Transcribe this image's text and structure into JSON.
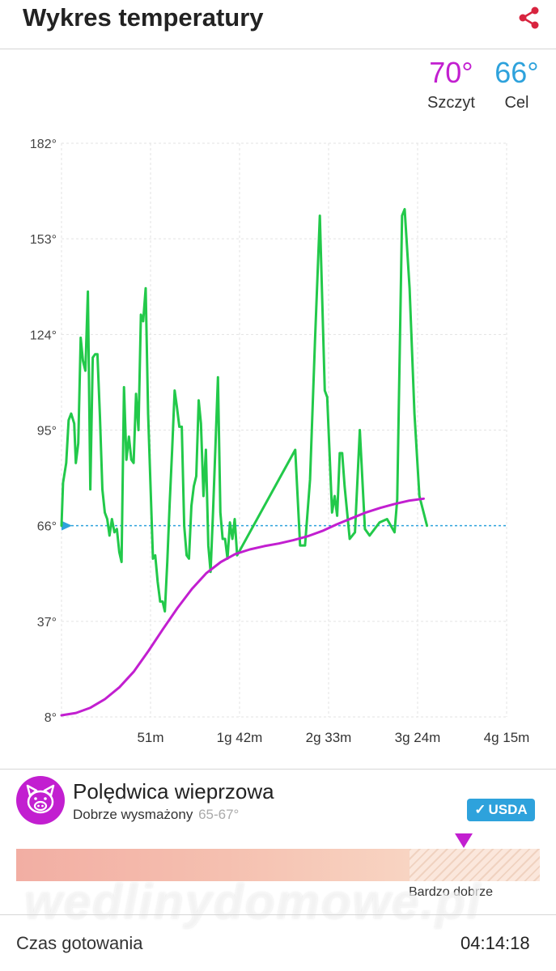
{
  "header": {
    "title": "Wykres temperatury",
    "share_icon": "share-icon"
  },
  "stats": {
    "peak_value": "70°",
    "peak_label": "Szczyt",
    "target_value": "66°",
    "target_label": "Cel"
  },
  "chart_data": {
    "type": "line",
    "title": "",
    "xlabel": "",
    "ylabel": "",
    "y_ticks": [
      "182°",
      "153°",
      "124°",
      "95°",
      "66°",
      "37°",
      "8°"
    ],
    "x_ticks": [
      "51m",
      "1g 42m",
      "2g 33m",
      "3g 24m",
      "4g 15m"
    ],
    "y_tick_values": [
      182,
      153,
      124,
      95,
      66,
      37,
      8
    ],
    "x_tick_values": [
      51,
      102,
      153,
      204,
      255
    ],
    "ylim": [
      8,
      182
    ],
    "xlim": [
      0,
      255
    ],
    "grid": true,
    "target_line": 66,
    "colors": {
      "ambient": "#22c94a",
      "internal": "#c21fd0",
      "target": "#2ea2dc",
      "grid": "#e3e3e3"
    },
    "series": [
      {
        "points": [
          [
            0,
            66
          ],
          [
            0.9,
            79
          ],
          [
            2.7,
            85
          ],
          [
            4.1,
            98
          ],
          [
            5.5,
            100
          ],
          [
            7.3,
            97
          ],
          [
            8.2,
            85
          ],
          [
            9.6,
            91
          ],
          [
            11.0,
            123
          ],
          [
            12.3,
            116
          ],
          [
            13.7,
            113
          ],
          [
            15.1,
            137
          ],
          [
            16.5,
            77
          ],
          [
            17.9,
            117
          ],
          [
            19.3,
            118
          ],
          [
            20.6,
            118
          ],
          [
            22.0,
            99
          ],
          [
            23.4,
            77
          ],
          [
            24.8,
            70
          ],
          [
            26.2,
            68
          ],
          [
            27.5,
            63
          ],
          [
            28.9,
            68
          ],
          [
            30.3,
            64
          ],
          [
            31.7,
            65
          ],
          [
            33.1,
            58
          ],
          [
            34.4,
            55
          ],
          [
            35.8,
            108
          ],
          [
            37.2,
            86
          ],
          [
            38.6,
            93
          ],
          [
            40.0,
            86
          ],
          [
            41.3,
            85
          ],
          [
            42.7,
            106
          ],
          [
            44.1,
            95
          ],
          [
            45.5,
            130
          ],
          [
            46.8,
            128
          ],
          [
            48.2,
            138
          ],
          [
            49.6,
            100
          ],
          [
            51.0,
            78
          ],
          [
            52.4,
            56
          ],
          [
            53.7,
            57
          ],
          [
            55.1,
            49
          ],
          [
            56.5,
            43
          ],
          [
            57.9,
            43
          ],
          [
            59.2,
            40
          ],
          [
            60.6,
            55
          ],
          [
            62.0,
            73
          ],
          [
            63.4,
            89
          ],
          [
            64.8,
            107
          ],
          [
            66.1,
            102
          ],
          [
            67.5,
            96
          ],
          [
            68.9,
            96
          ],
          [
            70.3,
            66
          ],
          [
            71.7,
            57
          ],
          [
            73.0,
            56
          ],
          [
            74.4,
            72
          ],
          [
            75.8,
            78
          ],
          [
            77.2,
            81
          ],
          [
            78.6,
            104
          ],
          [
            79.9,
            97
          ],
          [
            81.3,
            75
          ],
          [
            82.7,
            89
          ],
          [
            84.1,
            60
          ],
          [
            85.4,
            52
          ],
          [
            86.8,
            70
          ],
          [
            88.2,
            90
          ],
          [
            89.6,
            111
          ],
          [
            91.0,
            70
          ],
          [
            92.3,
            62
          ],
          [
            93.7,
            62
          ],
          [
            95.1,
            56
          ],
          [
            96.5,
            67
          ],
          [
            97.9,
            62
          ],
          [
            99.2,
            68
          ],
          [
            100.6,
            57
          ],
          [
            133.9,
            89
          ],
          [
            136.7,
            60
          ],
          [
            139.5,
            60
          ],
          [
            142.4,
            80
          ],
          [
            145.2,
            122
          ],
          [
            148.0,
            160
          ],
          [
            150.8,
            107
          ],
          [
            152.2,
            105
          ],
          [
            155.0,
            70
          ],
          [
            156.5,
            75
          ],
          [
            157.9,
            69
          ],
          [
            159.4,
            88
          ],
          [
            160.8,
            88
          ],
          [
            162.2,
            78
          ],
          [
            165.1,
            62
          ],
          [
            168.1,
            64
          ],
          [
            170.9,
            95
          ],
          [
            173.8,
            65
          ],
          [
            176.5,
            63
          ],
          [
            182.2,
            67
          ],
          [
            186.5,
            68
          ],
          [
            190.8,
            64
          ],
          [
            192.3,
            74
          ],
          [
            195.1,
            160
          ],
          [
            196.6,
            162
          ],
          [
            199.4,
            138
          ],
          [
            202.2,
            100
          ],
          [
            205.0,
            75
          ],
          [
            209.4,
            66
          ]
        ]
      },
      {
        "points": [
          [
            0,
            8.5
          ],
          [
            8.3,
            9.2
          ],
          [
            16.6,
            10.8
          ],
          [
            24.9,
            13.4
          ],
          [
            33.2,
            17.0
          ],
          [
            41.5,
            21.8
          ],
          [
            49.8,
            28.0
          ],
          [
            58.1,
            34.6
          ],
          [
            66.4,
            41.0
          ],
          [
            74.7,
            46.8
          ],
          [
            83.0,
            51.6
          ],
          [
            91.3,
            55.0
          ],
          [
            99.6,
            57.4
          ],
          [
            107.9,
            58.8
          ],
          [
            116.2,
            59.8
          ],
          [
            124.5,
            60.6
          ],
          [
            132.8,
            61.6
          ],
          [
            141.1,
            62.8
          ],
          [
            149.4,
            64.4
          ],
          [
            157.7,
            66.4
          ],
          [
            166.0,
            68.2
          ],
          [
            174.3,
            70.0
          ],
          [
            182.6,
            71.4
          ],
          [
            190.9,
            72.6
          ],
          [
            199.2,
            73.6
          ],
          [
            207.5,
            74.2
          ]
        ]
      }
    ]
  },
  "cut": {
    "avatar_icon": "pig-icon",
    "name": "Polędwica wieprzowa",
    "doneness": "Dobrze wysmażony",
    "range": "65-67°",
    "usda_check": "✓",
    "usda_label": "USDA",
    "zone_label": "Bardzo dobrze"
  },
  "watermark": "wedlinydomowe.pl",
  "footer": {
    "label": "Czas gotowania",
    "time": "04:14:18"
  }
}
